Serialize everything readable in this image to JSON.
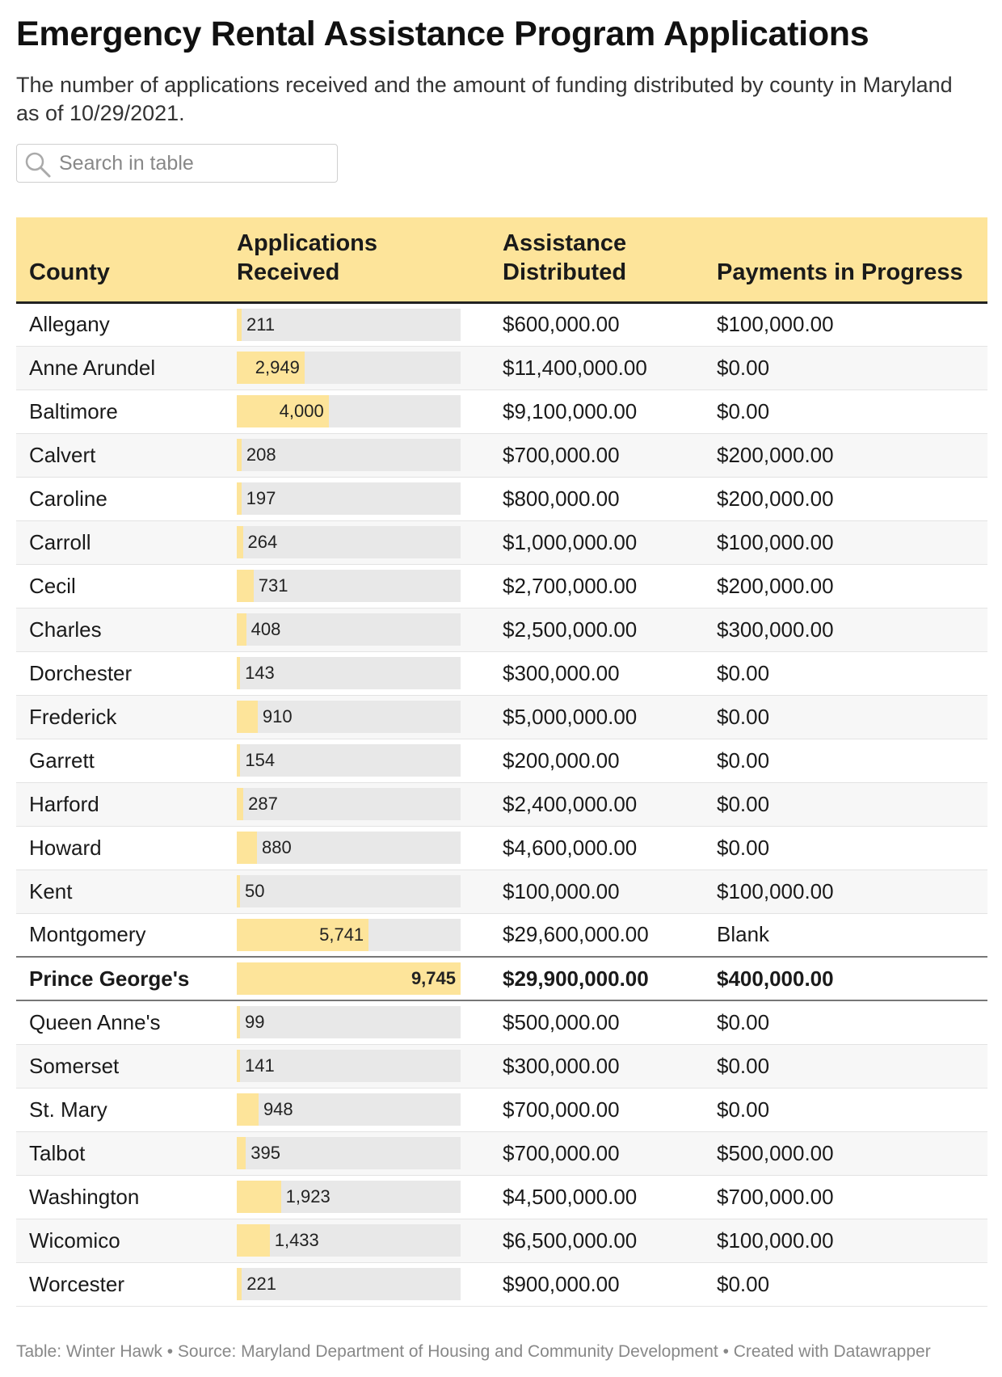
{
  "title": "Emergency Rental Assistance Program Applications",
  "subtitle": "The number of applications received and the amount of funding distributed by county in Maryland as of 10/29/2021.",
  "search": {
    "placeholder": "Search in table"
  },
  "columns": {
    "county": "County",
    "applications": "Applications Received",
    "assistance": "Assistance Distributed",
    "payments": "Payments in Progress"
  },
  "chart_data": {
    "type": "table",
    "max_applications": 9745,
    "rows": [
      {
        "county": "Allegany",
        "applications": 211,
        "applications_label": "211",
        "assistance": "$600,000.00",
        "payments": "$100,000.00"
      },
      {
        "county": "Anne Arundel",
        "applications": 2949,
        "applications_label": "2,949",
        "assistance": "$11,400,000.00",
        "payments": "$0.00"
      },
      {
        "county": "Baltimore",
        "applications": 4000,
        "applications_label": "4,000",
        "assistance": "$9,100,000.00",
        "payments": "$0.00"
      },
      {
        "county": "Calvert",
        "applications": 208,
        "applications_label": "208",
        "assistance": "$700,000.00",
        "payments": "$200,000.00"
      },
      {
        "county": "Caroline",
        "applications": 197,
        "applications_label": "197",
        "assistance": "$800,000.00",
        "payments": "$200,000.00"
      },
      {
        "county": "Carroll",
        "applications": 264,
        "applications_label": "264",
        "assistance": "$1,000,000.00",
        "payments": "$100,000.00"
      },
      {
        "county": "Cecil",
        "applications": 731,
        "applications_label": "731",
        "assistance": "$2,700,000.00",
        "payments": "$200,000.00"
      },
      {
        "county": "Charles",
        "applications": 408,
        "applications_label": "408",
        "assistance": "$2,500,000.00",
        "payments": "$300,000.00"
      },
      {
        "county": "Dorchester",
        "applications": 143,
        "applications_label": "143",
        "assistance": "$300,000.00",
        "payments": "$0.00"
      },
      {
        "county": "Frederick",
        "applications": 910,
        "applications_label": "910",
        "assistance": "$5,000,000.00",
        "payments": "$0.00"
      },
      {
        "county": "Garrett",
        "applications": 154,
        "applications_label": "154",
        "assistance": "$200,000.00",
        "payments": "$0.00"
      },
      {
        "county": "Harford",
        "applications": 287,
        "applications_label": "287",
        "assistance": "$2,400,000.00",
        "payments": "$0.00"
      },
      {
        "county": "Howard",
        "applications": 880,
        "applications_label": "880",
        "assistance": "$4,600,000.00",
        "payments": "$0.00"
      },
      {
        "county": "Kent",
        "applications": 50,
        "applications_label": "50",
        "assistance": "$100,000.00",
        "payments": "$100,000.00"
      },
      {
        "county": "Montgomery",
        "applications": 5741,
        "applications_label": "5,741",
        "assistance": "$29,600,000.00",
        "payments": "Blank"
      },
      {
        "county": "Prince George's",
        "applications": 9745,
        "applications_label": "9,745",
        "assistance": "$29,900,000.00",
        "payments": "$400,000.00",
        "highlight": true
      },
      {
        "county": "Queen Anne's",
        "applications": 99,
        "applications_label": "99",
        "assistance": "$500,000.00",
        "payments": "$0.00"
      },
      {
        "county": "Somerset",
        "applications": 141,
        "applications_label": "141",
        "assistance": "$300,000.00",
        "payments": "$0.00"
      },
      {
        "county": "St. Mary",
        "applications": 948,
        "applications_label": "948",
        "assistance": "$700,000.00",
        "payments": "$0.00"
      },
      {
        "county": "Talbot",
        "applications": 395,
        "applications_label": "395",
        "assistance": "$700,000.00",
        "payments": "$500,000.00"
      },
      {
        "county": "Washington",
        "applications": 1923,
        "applications_label": "1,923",
        "assistance": "$4,500,000.00",
        "payments": "$700,000.00"
      },
      {
        "county": "Wicomico",
        "applications": 1433,
        "applications_label": "1,433",
        "assistance": "$6,500,000.00",
        "payments": "$100,000.00"
      },
      {
        "county": "Worcester",
        "applications": 221,
        "applications_label": "221",
        "assistance": "$900,000.00",
        "payments": "$0.00"
      }
    ]
  },
  "footer": "Table: Winter Hawk • Source: Maryland Department of Housing and Community Development • Created with Datawrapper",
  "colors": {
    "header_bg": "#fde49a",
    "bar_fill": "#fde49a",
    "bar_track": "#e8e8e8"
  }
}
